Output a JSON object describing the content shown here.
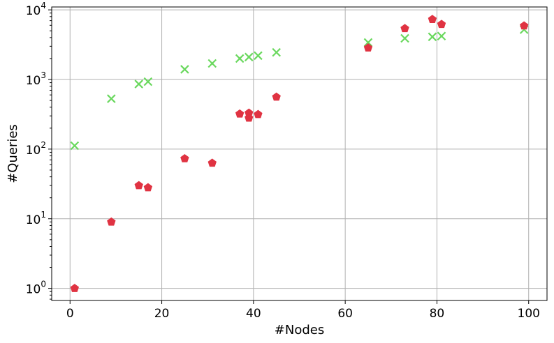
{
  "chart_data": {
    "type": "scatter",
    "xlabel": "#Nodes",
    "ylabel": "#Queries",
    "xlim": [
      -4,
      104
    ],
    "ylim": [
      0.67,
      11000
    ],
    "yscale": "log",
    "grid": true,
    "x_ticks": [
      0,
      20,
      40,
      60,
      80,
      100
    ],
    "y_ticks": [
      {
        "value": 1,
        "base": "10",
        "exp": "0"
      },
      {
        "value": 10,
        "base": "10",
        "exp": "1"
      },
      {
        "value": 100,
        "base": "10",
        "exp": "2"
      },
      {
        "value": 1000,
        "base": "10",
        "exp": "3"
      },
      {
        "value": 10000,
        "base": "10",
        "exp": "4"
      }
    ],
    "series": [
      {
        "marker": "x",
        "color": "#6ad85e",
        "points": [
          [
            1,
            112
          ],
          [
            9,
            530
          ],
          [
            15,
            860
          ],
          [
            17,
            930
          ],
          [
            25,
            1400
          ],
          [
            31,
            1700
          ],
          [
            37,
            2000
          ],
          [
            39,
            2100
          ],
          [
            41,
            2200
          ],
          [
            45,
            2450
          ],
          [
            65,
            3400
          ],
          [
            73,
            3900
          ],
          [
            79,
            4100
          ],
          [
            81,
            4200
          ],
          [
            99,
            5200
          ]
        ]
      },
      {
        "marker": "pentagon",
        "color": "#e03342",
        "points": [
          [
            1,
            1
          ],
          [
            9,
            9
          ],
          [
            15,
            30
          ],
          [
            17,
            28
          ],
          [
            25,
            73
          ],
          [
            31,
            63
          ],
          [
            37,
            320
          ],
          [
            39,
            330
          ],
          [
            39,
            280
          ],
          [
            41,
            315
          ],
          [
            45,
            560
          ],
          [
            65,
            2850
          ],
          [
            73,
            5400
          ],
          [
            79,
            7300
          ],
          [
            81,
            6200
          ],
          [
            99,
            5900
          ]
        ]
      }
    ]
  }
}
